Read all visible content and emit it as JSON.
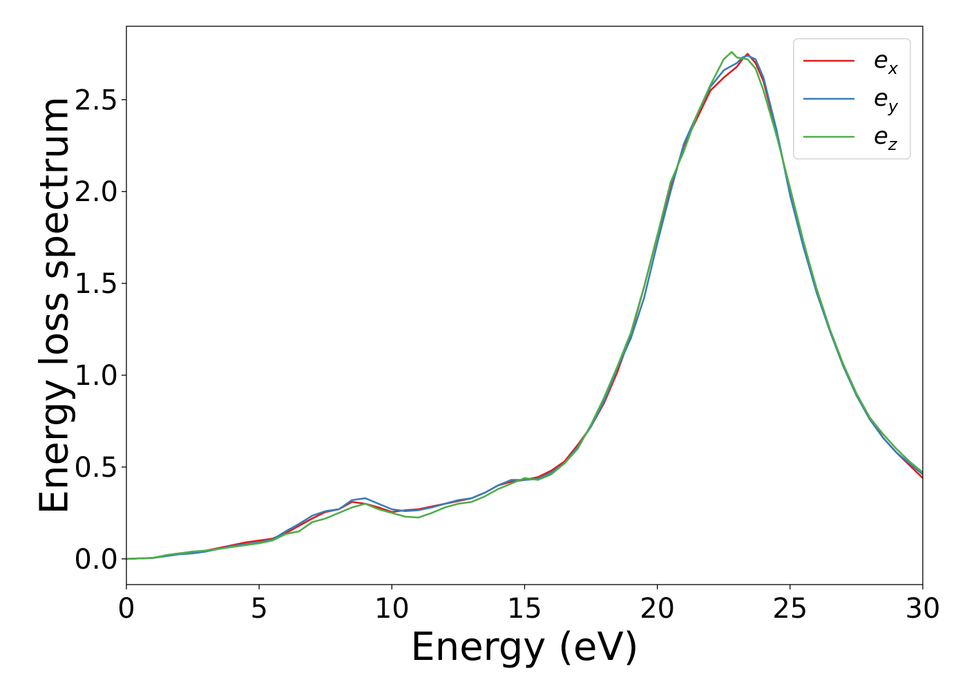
{
  "chart_data": {
    "type": "line",
    "title": "",
    "xlabel": "Energy (eV)",
    "ylabel": "Energy loss spectrum",
    "xlim": [
      0,
      30
    ],
    "ylim": [
      -0.14,
      2.9
    ],
    "xticks": [
      0,
      5,
      10,
      15,
      20,
      25,
      30
    ],
    "xtick_labels": [
      "0",
      "5",
      "10",
      "15",
      "20",
      "25",
      "30"
    ],
    "yticks": [
      0.0,
      0.5,
      1.0,
      1.5,
      2.0,
      2.5
    ],
    "ytick_labels": [
      "0.0",
      "0.5",
      "1.0",
      "1.5",
      "2.0",
      "2.5"
    ],
    "grid": false,
    "legend_position": "top-right",
    "series": [
      {
        "name": "e_x",
        "legend_base": "e",
        "legend_sub": "x",
        "color": "#e41a1c",
        "x": [
          0,
          1,
          1.5,
          2,
          2.5,
          3,
          3.5,
          4,
          4.5,
          5,
          5.5,
          6,
          6.5,
          7,
          7.5,
          8,
          8.5,
          9,
          9.5,
          10,
          10.5,
          11,
          11.5,
          12,
          12.5,
          13,
          13.5,
          14,
          14.5,
          15,
          15.5,
          16,
          16.5,
          17,
          17.5,
          18,
          18.5,
          19,
          19.5,
          20,
          20.5,
          21,
          21.5,
          22,
          22.5,
          23,
          23.2,
          23.4,
          23.7,
          24,
          24.5,
          25,
          25.5,
          26,
          26.5,
          27,
          27.5,
          28,
          28.5,
          29,
          29.5,
          30
        ],
        "y": [
          0.0,
          0.005,
          0.02,
          0.03,
          0.035,
          0.045,
          0.06,
          0.075,
          0.09,
          0.1,
          0.11,
          0.14,
          0.18,
          0.22,
          0.255,
          0.27,
          0.31,
          0.3,
          0.28,
          0.255,
          0.265,
          0.27,
          0.285,
          0.3,
          0.315,
          0.33,
          0.36,
          0.4,
          0.42,
          0.43,
          0.445,
          0.48,
          0.53,
          0.62,
          0.72,
          0.85,
          1.02,
          1.22,
          1.48,
          1.76,
          2.02,
          2.25,
          2.4,
          2.55,
          2.62,
          2.68,
          2.72,
          2.75,
          2.7,
          2.6,
          2.32,
          2.0,
          1.72,
          1.47,
          1.25,
          1.06,
          0.9,
          0.77,
          0.66,
          0.58,
          0.51,
          0.44
        ]
      },
      {
        "name": "e_y",
        "legend_base": "e",
        "legend_sub": "y",
        "color": "#377eb8",
        "x": [
          0,
          1,
          1.5,
          2,
          2.5,
          3,
          3.5,
          4,
          4.5,
          5,
          5.5,
          6,
          6.5,
          7,
          7.5,
          8,
          8.5,
          9,
          9.5,
          10,
          10.5,
          11,
          11.5,
          12,
          12.5,
          13,
          13.5,
          14,
          14.5,
          15,
          15.5,
          16,
          16.5,
          17,
          17.5,
          18,
          18.5,
          19,
          19.5,
          20,
          20.5,
          21,
          21.5,
          22,
          22.5,
          23,
          23.2,
          23.4,
          23.7,
          24,
          24.5,
          25,
          25.5,
          26,
          26.5,
          27,
          27.5,
          28,
          28.5,
          29,
          29.5,
          30
        ],
        "y": [
          0.0,
          0.005,
          0.015,
          0.025,
          0.03,
          0.04,
          0.055,
          0.07,
          0.08,
          0.09,
          0.105,
          0.15,
          0.19,
          0.235,
          0.26,
          0.27,
          0.32,
          0.33,
          0.3,
          0.27,
          0.26,
          0.265,
          0.28,
          0.3,
          0.32,
          0.33,
          0.36,
          0.4,
          0.43,
          0.43,
          0.435,
          0.47,
          0.52,
          0.61,
          0.72,
          0.86,
          1.04,
          1.2,
          1.42,
          1.72,
          2.0,
          2.26,
          2.42,
          2.57,
          2.66,
          2.7,
          2.73,
          2.74,
          2.72,
          2.62,
          2.33,
          1.98,
          1.7,
          1.45,
          1.24,
          1.05,
          0.89,
          0.76,
          0.66,
          0.58,
          0.52,
          0.46
        ]
      },
      {
        "name": "e_z",
        "legend_base": "e",
        "legend_sub": "z",
        "color": "#4daf4a",
        "x": [
          0,
          1,
          1.5,
          2,
          2.5,
          3,
          3.5,
          4,
          4.5,
          5,
          5.5,
          6,
          6.5,
          7,
          7.5,
          8,
          8.5,
          9,
          9.5,
          10,
          10.5,
          11,
          11.5,
          12,
          12.5,
          13,
          13.5,
          14,
          14.5,
          15,
          15.5,
          16,
          16.5,
          17,
          17.5,
          18,
          18.5,
          19,
          19.5,
          20,
          20.5,
          21,
          21.5,
          22,
          22.5,
          22.8,
          23,
          23.4,
          23.7,
          24,
          24.5,
          25,
          25.5,
          26,
          26.5,
          27,
          27.5,
          28,
          28.5,
          29,
          29.5,
          30
        ],
        "y": [
          0.0,
          0.005,
          0.02,
          0.03,
          0.04,
          0.045,
          0.055,
          0.065,
          0.075,
          0.085,
          0.1,
          0.135,
          0.15,
          0.2,
          0.22,
          0.25,
          0.28,
          0.3,
          0.27,
          0.25,
          0.23,
          0.225,
          0.25,
          0.28,
          0.3,
          0.31,
          0.34,
          0.38,
          0.41,
          0.44,
          0.43,
          0.46,
          0.52,
          0.6,
          0.73,
          0.88,
          1.05,
          1.23,
          1.48,
          1.76,
          2.05,
          2.22,
          2.42,
          2.58,
          2.72,
          2.76,
          2.73,
          2.72,
          2.67,
          2.55,
          2.3,
          2.02,
          1.73,
          1.47,
          1.25,
          1.06,
          0.9,
          0.77,
          0.68,
          0.6,
          0.53,
          0.47
        ]
      }
    ]
  }
}
